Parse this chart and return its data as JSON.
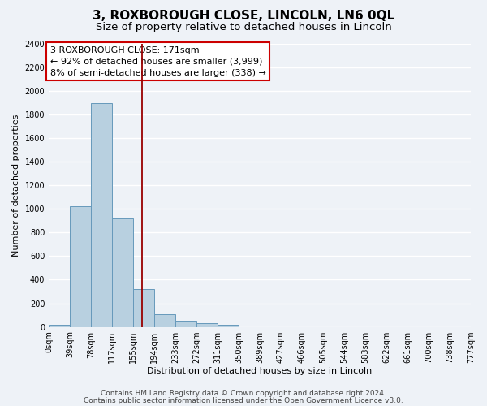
{
  "title": "3, ROXBOROUGH CLOSE, LINCOLN, LN6 0QL",
  "subtitle": "Size of property relative to detached houses in Lincoln",
  "xlabel": "Distribution of detached houses by size in Lincoln",
  "ylabel": "Number of detached properties",
  "bar_edges": [
    0,
    39,
    78,
    117,
    155,
    194,
    233,
    272,
    311,
    350,
    389,
    427,
    466,
    505,
    544,
    583,
    622,
    661,
    700,
    738,
    777
  ],
  "bar_heights": [
    20,
    1025,
    1900,
    920,
    320,
    105,
    55,
    30,
    20,
    0,
    0,
    0,
    0,
    0,
    0,
    0,
    0,
    0,
    0,
    0
  ],
  "bar_color": "#b8d0e0",
  "bar_edge_color": "#6699bb",
  "property_line_x": 171,
  "property_line_color": "#990000",
  "annotation_line1": "3 ROXBOROUGH CLOSE: 171sqm",
  "annotation_line2": "← 92% of detached houses are smaller (3,999)",
  "annotation_line3": "8% of semi-detached houses are larger (338) →",
  "ylim": [
    0,
    2400
  ],
  "yticks": [
    0,
    200,
    400,
    600,
    800,
    1000,
    1200,
    1400,
    1600,
    1800,
    2000,
    2200,
    2400
  ],
  "tick_labels": [
    "0sqm",
    "39sqm",
    "78sqm",
    "117sqm",
    "155sqm",
    "194sqm",
    "233sqm",
    "272sqm",
    "311sqm",
    "350sqm",
    "389sqm",
    "427sqm",
    "466sqm",
    "505sqm",
    "544sqm",
    "583sqm",
    "622sqm",
    "661sqm",
    "700sqm",
    "738sqm",
    "777sqm"
  ],
  "footer_line1": "Contains HM Land Registry data © Crown copyright and database right 2024.",
  "footer_line2": "Contains public sector information licensed under the Open Government Licence v3.0.",
  "bg_color": "#eef2f7",
  "plot_bg_color": "#eef2f7",
  "grid_color": "#ffffff",
  "title_fontsize": 11,
  "subtitle_fontsize": 9.5,
  "axis_label_fontsize": 8,
  "tick_fontsize": 7,
  "footer_fontsize": 6.5,
  "annotation_fontsize": 8
}
